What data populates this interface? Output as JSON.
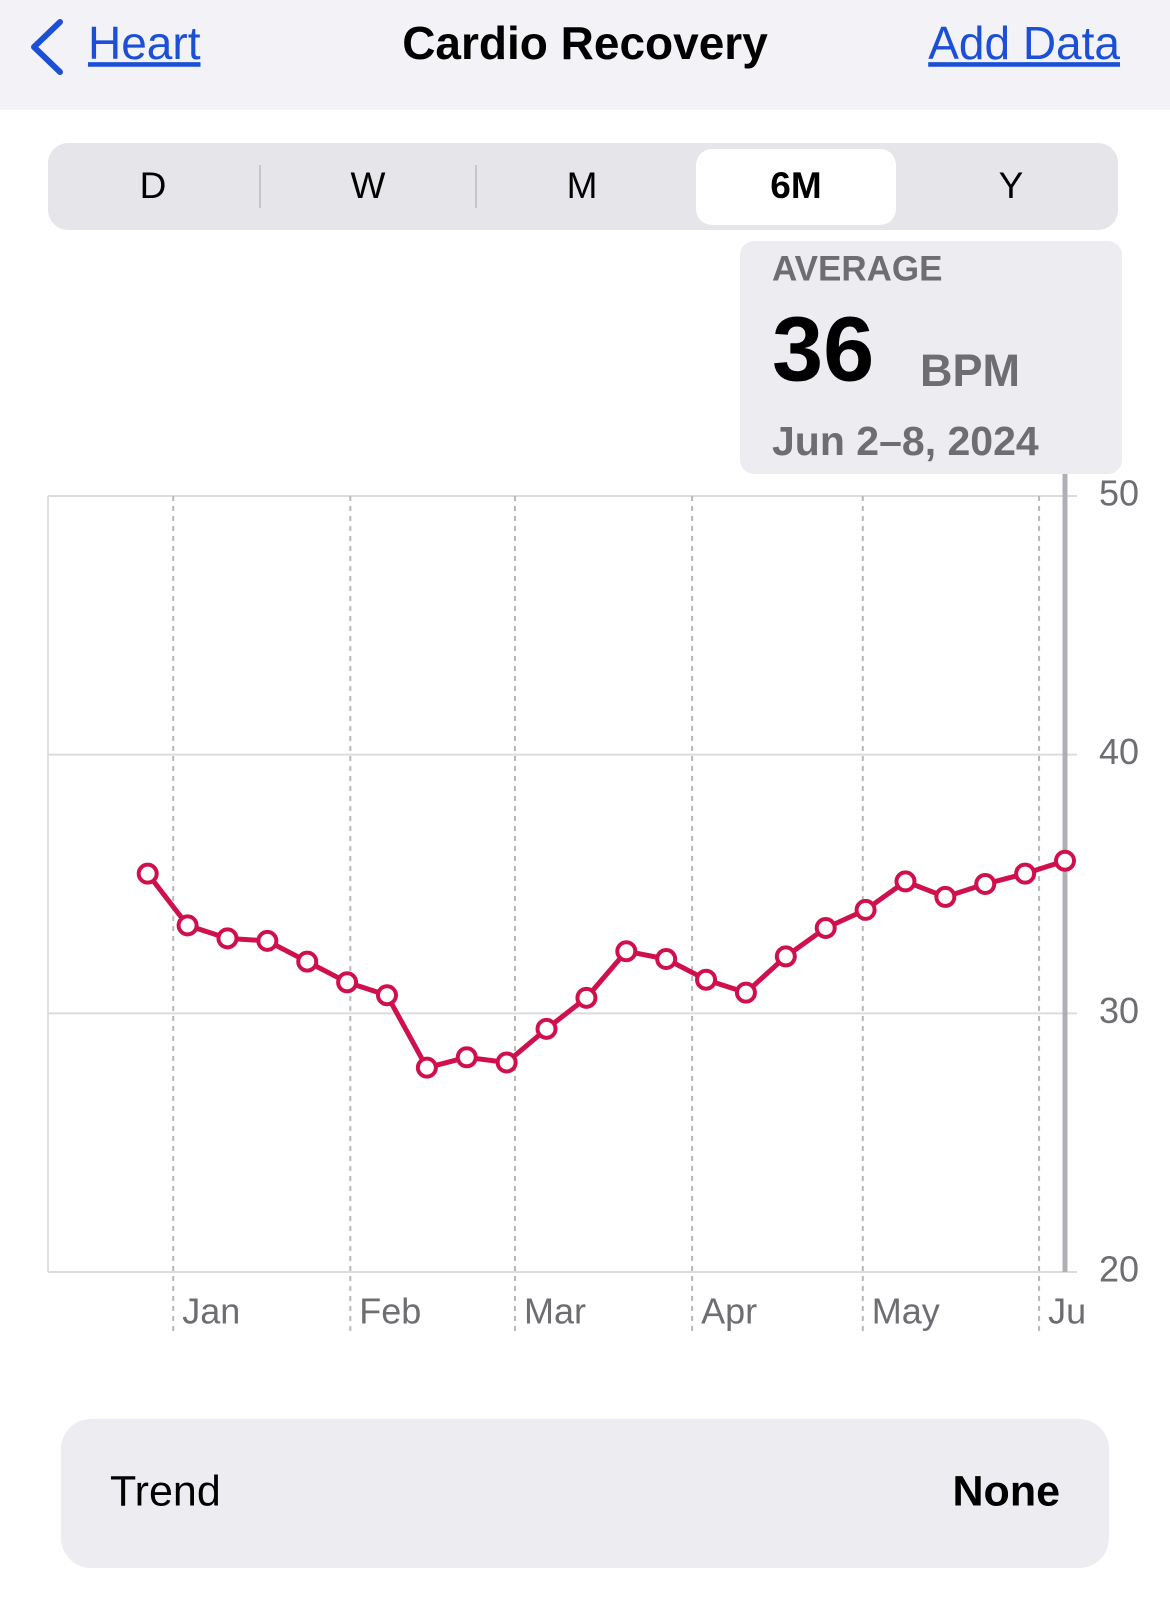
{
  "nav": {
    "back": "Heart",
    "title": "Cardio Recovery",
    "action": "Add Data"
  },
  "segments": {
    "items": [
      "D",
      "W",
      "M",
      "6M",
      "Y"
    ],
    "selected": 3
  },
  "callout": {
    "label": "AVERAGE",
    "value": "36",
    "unit": "BPM",
    "date": "Jun 2–8, 2024"
  },
  "chart_data": {
    "type": "line",
    "x": [
      0,
      1,
      2,
      3,
      4,
      5,
      6,
      7,
      8,
      9,
      10,
      11,
      12,
      13,
      14,
      15,
      16,
      17,
      18,
      19,
      20,
      21,
      22,
      23
    ],
    "series": [
      {
        "name": "Cardio Recovery",
        "color": "#d0104c",
        "values": [
          35.4,
          33.4,
          32.9,
          32.8,
          32.0,
          31.2,
          30.7,
          27.9,
          28.3,
          28.1,
          29.4,
          30.6,
          32.4,
          32.1,
          31.3,
          30.8,
          32.2,
          33.3,
          34.0,
          35.1,
          34.5,
          35.0,
          35.4,
          35.9
        ]
      }
    ],
    "xlim": [
      -2.5,
      23
    ],
    "xticks": [
      {
        "value": 0.64,
        "label": "Jan"
      },
      {
        "value": 5.08,
        "label": "Feb"
      },
      {
        "value": 9.21,
        "label": "Mar"
      },
      {
        "value": 13.65,
        "label": "Apr"
      },
      {
        "value": 17.93,
        "label": "May"
      },
      {
        "value": 22.35,
        "label": "Ju"
      }
    ],
    "ylim": [
      20,
      50
    ],
    "yticks": [
      20,
      30,
      40,
      50
    ],
    "grid": true
  },
  "trend": {
    "label": "Trend",
    "value": "None"
  }
}
